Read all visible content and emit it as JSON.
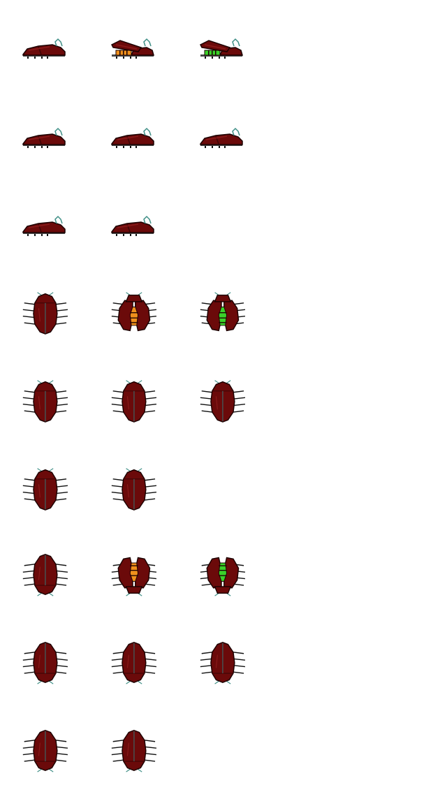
{
  "sheet": {
    "name": "beetle-sprite-sheet",
    "background": "#ffffff",
    "colors": {
      "shell": "#6b0a0a",
      "shell_dark": "#3e0505",
      "shell_highlight": "#8a1a1a",
      "outline": "#1a0000",
      "legs": "#111111",
      "antenna": "#3f8f86",
      "wing_seam": "#4a4a4a",
      "abdomen_orange": "#f0901c",
      "abdomen_green": "#3bd12a"
    },
    "rows": [
      {
        "view": "side",
        "frames": [
          {
            "pose": "closed"
          },
          {
            "pose": "open",
            "abdomen": "orange"
          },
          {
            "pose": "open",
            "abdomen": "green"
          }
        ]
      },
      {
        "view": "side",
        "frames": [
          {
            "pose": "closed"
          },
          {
            "pose": "closed"
          },
          {
            "pose": "closed"
          }
        ]
      },
      {
        "view": "side",
        "frames": [
          {
            "pose": "closed"
          },
          {
            "pose": "closed"
          }
        ]
      },
      {
        "view": "top-down",
        "frames": [
          {
            "pose": "closed"
          },
          {
            "pose": "open",
            "abdomen": "orange"
          },
          {
            "pose": "open",
            "abdomen": "green"
          }
        ]
      },
      {
        "view": "top-down",
        "frames": [
          {
            "pose": "closed"
          },
          {
            "pose": "closed"
          },
          {
            "pose": "closed"
          }
        ]
      },
      {
        "view": "top-down",
        "frames": [
          {
            "pose": "closed"
          },
          {
            "pose": "closed"
          }
        ]
      },
      {
        "view": "top-up",
        "frames": [
          {
            "pose": "closed"
          },
          {
            "pose": "open",
            "abdomen": "orange"
          },
          {
            "pose": "open",
            "abdomen": "green"
          }
        ]
      },
      {
        "view": "top-up",
        "frames": [
          {
            "pose": "closed"
          },
          {
            "pose": "closed"
          },
          {
            "pose": "closed"
          }
        ]
      },
      {
        "view": "top-up",
        "frames": [
          {
            "pose": "closed"
          },
          {
            "pose": "closed"
          }
        ]
      }
    ]
  }
}
